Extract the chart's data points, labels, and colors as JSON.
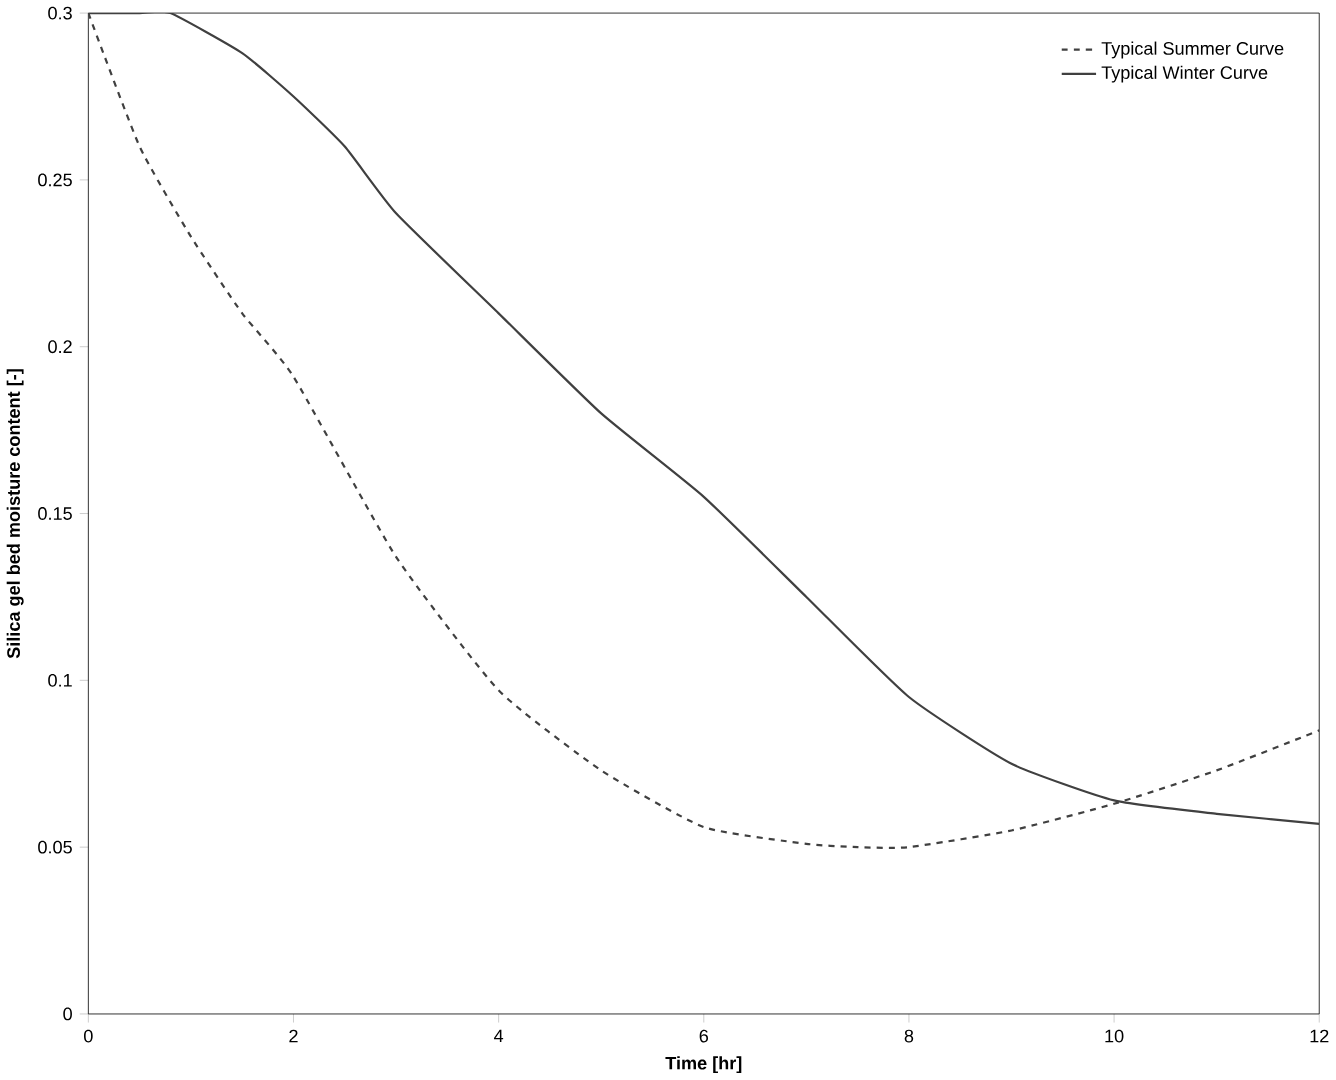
{
  "chart_data": {
    "type": "line",
    "xlabel": "Time [hr]",
    "ylabel": "Silica gel bed moisture content [-]",
    "xlim": [
      0,
      12
    ],
    "xticks": [
      0,
      2,
      4,
      6,
      8,
      10,
      12
    ],
    "ylim": [
      0,
      0.3
    ],
    "yticks": [
      0,
      0.05,
      0.1,
      0.15,
      0.2,
      0.25,
      0.3
    ],
    "legend": "top right",
    "grid": false,
    "marker": "none",
    "series": [
      {
        "name": "Typical Summer Curve",
        "color": "#404040",
        "line_style": "dashed",
        "x": [
          0,
          0.5,
          1,
          1.5,
          2,
          3,
          4,
          5,
          6,
          7,
          7.5,
          8,
          9,
          10,
          11,
          12
        ],
        "values": [
          0.3,
          0.26,
          0.233,
          0.21,
          0.191,
          0.137,
          0.097,
          0.073,
          0.056,
          0.051,
          0.05,
          0.05,
          0.055,
          0.063,
          0.073,
          0.085
        ]
      },
      {
        "name": "Typical Winter Curve",
        "color": "#404040",
        "line_style": "solid",
        "x": [
          0,
          0.5,
          0.8,
          1.5,
          2,
          2.5,
          3,
          4,
          5,
          6,
          7,
          8,
          9,
          10,
          11,
          12
        ],
        "values": [
          0.3,
          0.3,
          0.3,
          0.288,
          0.275,
          0.26,
          0.24,
          0.21,
          0.18,
          0.155,
          0.125,
          0.095,
          0.075,
          0.064,
          0.06,
          0.057
        ]
      }
    ]
  }
}
